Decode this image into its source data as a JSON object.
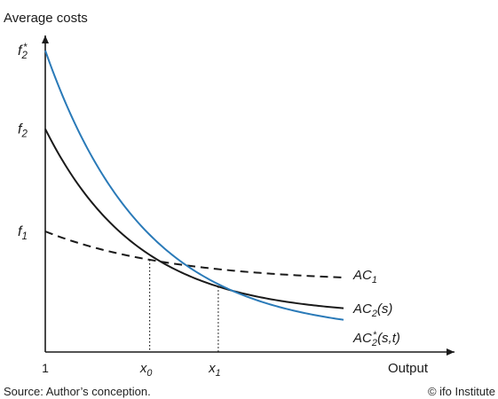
{
  "chart_data": {
    "type": "line",
    "ylabel": "Average costs",
    "xlabel": "Output",
    "x_origin_label": "1",
    "x_marks": [
      {
        "name": "x0",
        "base": "x",
        "sub": "0",
        "x": 0.35
      },
      {
        "name": "x1",
        "base": "x",
        "sub": "1",
        "x": 0.58
      }
    ],
    "y_marks": [
      {
        "name": "f2-star",
        "base": "f",
        "sub": "2",
        "sup": "*",
        "y": 1.0
      },
      {
        "name": "f2",
        "base": "f",
        "sub": "2",
        "sup": "",
        "y": 0.74
      },
      {
        "name": "f1",
        "base": "f",
        "sub": "1",
        "sup": "",
        "y": 0.4
      }
    ],
    "series": [
      {
        "name": "AC1",
        "label_base": "AC",
        "label_sub": "1",
        "label_sup": "",
        "label_suffix": "",
        "style": "dashed",
        "color": "#1a1a1a",
        "start": 0.4,
        "end": 0.23,
        "k": 2.3
      },
      {
        "name": "AC2(s)",
        "label_base": "AC",
        "label_sub": "2",
        "label_sup": "",
        "label_suffix": "(s)",
        "style": "solid",
        "color": "#1a1a1a",
        "start": 0.74,
        "end": 0.12,
        "k": 3.2
      },
      {
        "name": "AC2*(s,t)",
        "label_base": "AC",
        "label_sub": "2",
        "label_sup": "*",
        "label_suffix": "(s,t)",
        "style": "solid",
        "color": "#2a7ab8",
        "start": 1.0,
        "end": 0.06,
        "k": 3.0
      }
    ]
  },
  "footer": {
    "source": "Source: Author’s conception.",
    "credit": "© ifo Institute"
  }
}
